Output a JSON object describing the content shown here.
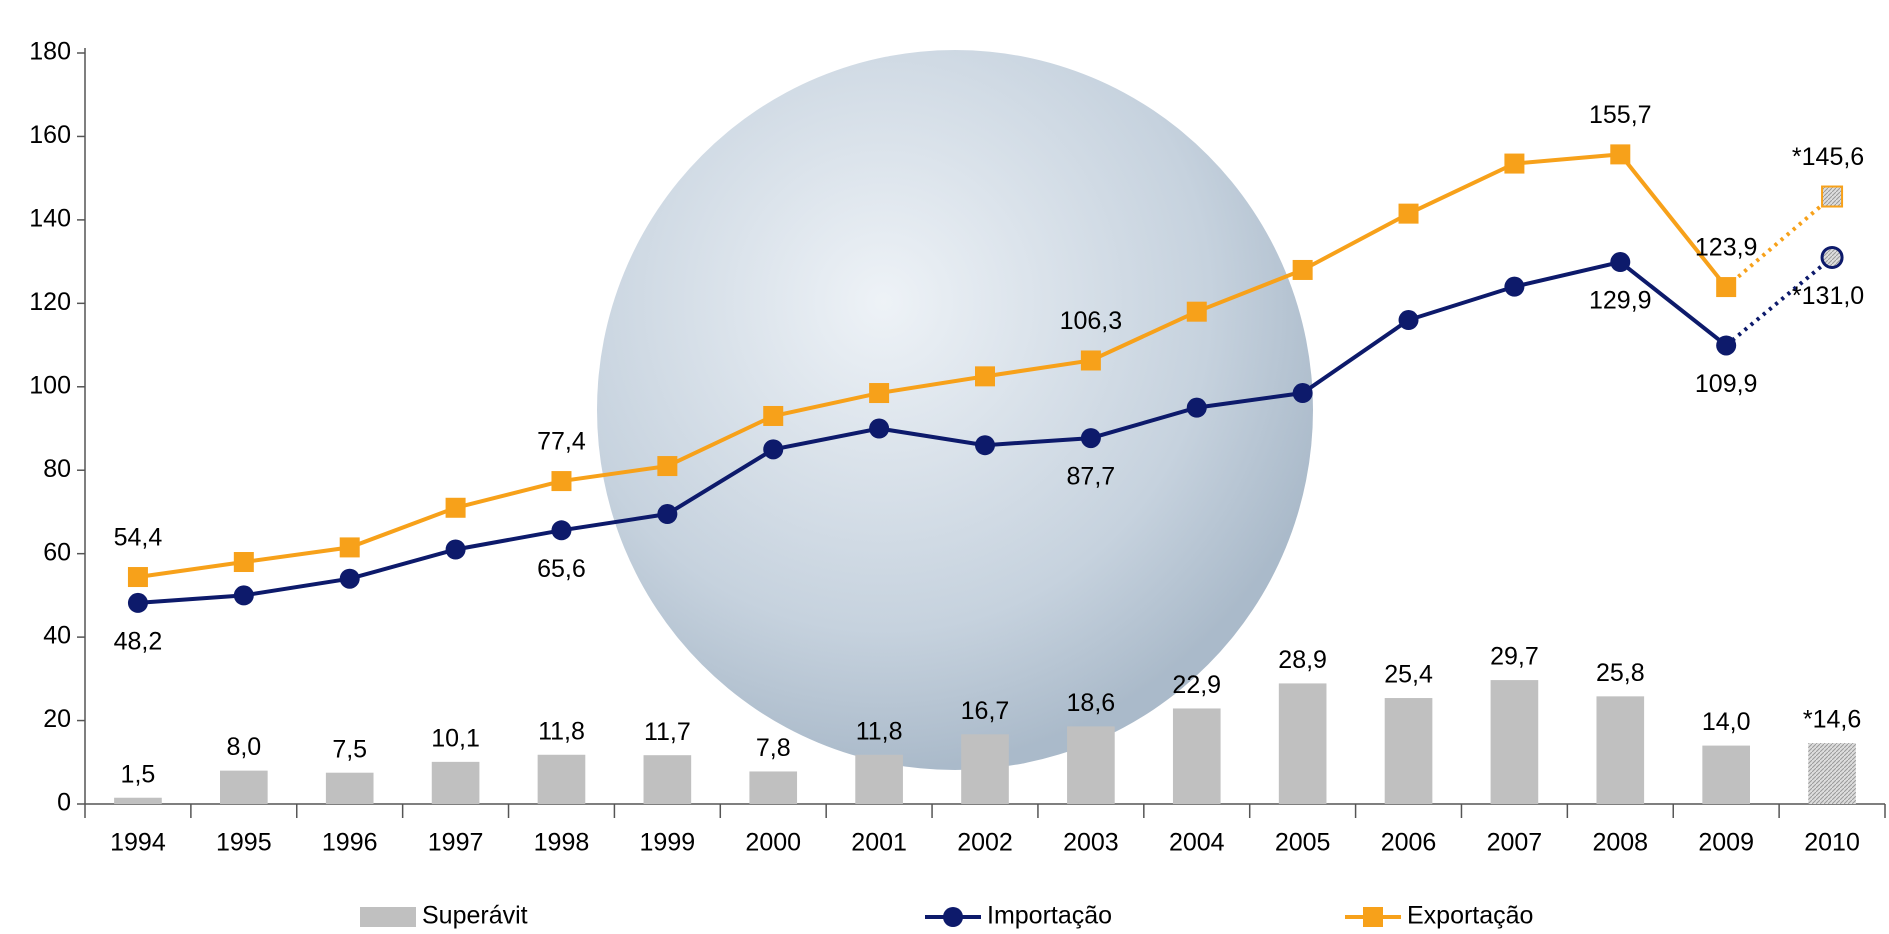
{
  "chart_data": {
    "type": "bar_line",
    "categories": [
      "1994",
      "1995",
      "1996",
      "1997",
      "1998",
      "1999",
      "2000",
      "2001",
      "2002",
      "2003",
      "2004",
      "2005",
      "2006",
      "2007",
      "2008",
      "2009",
      "2010"
    ],
    "series": [
      {
        "name": "Superávit",
        "type": "bar",
        "color": "#c0c0c0",
        "values": [
          1.5,
          8.0,
          7.5,
          10.1,
          11.8,
          11.7,
          7.8,
          11.8,
          16.7,
          18.6,
          22.9,
          28.9,
          25.4,
          29.7,
          25.8,
          14.0,
          14.6
        ],
        "value_labels": [
          "1,5",
          "8,0",
          "7,5",
          "10,1",
          "11,8",
          "11,7",
          "7,8",
          "11,8",
          "16,7",
          "18,6",
          "22,9",
          "28,9",
          "25,4",
          "29,7",
          "25,8",
          "14,0",
          "*14,6"
        ]
      },
      {
        "name": "Importação",
        "type": "line",
        "marker": "circle",
        "color": "#0d1a6b",
        "values": [
          48.2,
          50,
          54,
          61,
          65.6,
          69.5,
          85,
          90,
          86,
          87.7,
          95,
          98.5,
          116,
          124,
          129.9,
          109.9,
          131.0
        ],
        "value_labels": [
          "48,2",
          null,
          null,
          null,
          "65,6",
          null,
          null,
          null,
          null,
          "87,7",
          null,
          null,
          null,
          null,
          "129,9",
          "109,9",
          "*131,0"
        ]
      },
      {
        "name": "Exportação",
        "type": "line",
        "marker": "square",
        "color": "#f7a11a",
        "values": [
          54.4,
          58,
          61.5,
          71,
          77.4,
          81,
          93,
          98.5,
          102.5,
          106.3,
          118,
          128,
          141.5,
          153.5,
          155.7,
          123.9,
          145.6
        ],
        "value_labels": [
          "54,4",
          null,
          null,
          null,
          "77,4",
          null,
          null,
          null,
          null,
          "106,3",
          null,
          null,
          null,
          null,
          "155,7",
          "123,9",
          "*145,6"
        ]
      }
    ],
    "ylim": [
      0,
      180
    ],
    "yticks": [
      0,
      20,
      40,
      60,
      80,
      100,
      120,
      140,
      160,
      180
    ],
    "grid": false,
    "legend": "bottom"
  }
}
